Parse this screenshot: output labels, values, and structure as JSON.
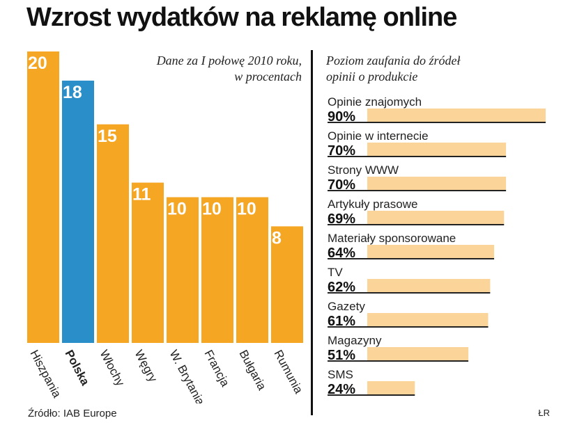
{
  "title": "Wzrost wydatków na reklamę online",
  "source": "Źródło: IAB Europe",
  "credit": "ŁR",
  "colors": {
    "bar": "#f5a623",
    "highlight": "#2a8ec9",
    "hbar": "#fbd49a",
    "text": "#222222"
  },
  "chart_data": [
    {
      "type": "bar",
      "note_line1": "Dane za I połowę 2010 roku,",
      "note_line2": "w procentach",
      "categories": [
        "Hiszpania",
        "Polska",
        "Włochy",
        "Węgry",
        "W. Brytania",
        "Francja",
        "Bułgaria",
        "Rumunia"
      ],
      "values": [
        20,
        18,
        15,
        11,
        10,
        10,
        10,
        8
      ],
      "highlight": "Polska",
      "ylim": [
        0,
        20
      ]
    },
    {
      "type": "bar",
      "orientation": "horizontal",
      "note_line1": "Poziom zaufania do źródeł",
      "note_line2": "opinii o produkcie",
      "items": [
        {
          "label": "Opinie znajomych",
          "value": 90,
          "value_label": "90%"
        },
        {
          "label": "Opinie w internecie",
          "value": 70,
          "value_label": "70%"
        },
        {
          "label": "Strony WWW",
          "value": 70,
          "value_label": "70%"
        },
        {
          "label": "Artykuły prasowe",
          "value": 69,
          "value_label": "69%"
        },
        {
          "label": "Materiały sponsorowane",
          "value": 64,
          "value_label": "64%"
        },
        {
          "label": "TV",
          "value": 62,
          "value_label": "62%"
        },
        {
          "label": "Gazety",
          "value": 61,
          "value_label": "61%"
        },
        {
          "label": "Magazyny",
          "value": 51,
          "value_label": "51%"
        },
        {
          "label": "SMS",
          "value": 24,
          "value_label": "24%"
        }
      ],
      "xlim": [
        0,
        90
      ]
    }
  ]
}
